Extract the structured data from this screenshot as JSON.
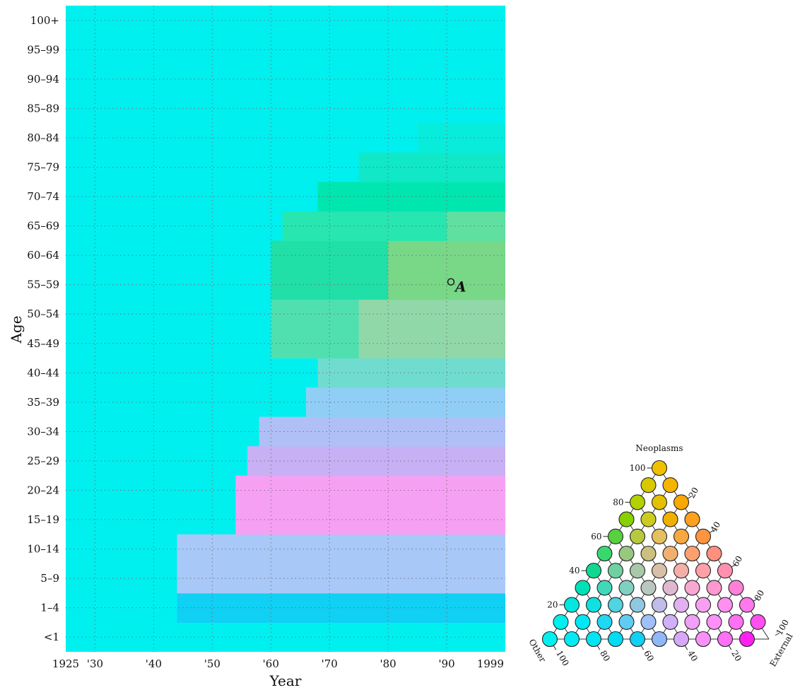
{
  "chart_data": [
    {
      "type": "heatmap",
      "title": "",
      "xlabel": "Year",
      "ylabel": "Age",
      "xlim": [
        1925,
        1999
      ],
      "x_ticks": [
        {
          "value": 1925,
          "label": "1925"
        },
        {
          "value": 1930,
          "label": "'30"
        },
        {
          "value": 1940,
          "label": "'40"
        },
        {
          "value": 1950,
          "label": "'50"
        },
        {
          "value": 1960,
          "label": "'60"
        },
        {
          "value": 1970,
          "label": "'70"
        },
        {
          "value": 1980,
          "label": "'80"
        },
        {
          "value": 1990,
          "label": "'90"
        },
        {
          "value": 1999,
          "label": "1999"
        }
      ],
      "age_groups": [
        "<1",
        "1–4",
        "5–9",
        "10–14",
        "15–19",
        "20–24",
        "25–29",
        "30–34",
        "35–39",
        "40–44",
        "45–49",
        "50–54",
        "55–59",
        "60–64",
        "65–69",
        "70–74",
        "75–79",
        "80–84",
        "85–89",
        "90–94",
        "95–99",
        "100+"
      ],
      "grid": true,
      "color_encoding": "ternary composition of cause of death shares: Other (cyan), Neoplasms (yellow), External (magenta)",
      "legend_placement": "bottom-right",
      "base_color": "#00f0f0",
      "regions": [
        {
          "x": [
            1944,
            1999
          ],
          "ages": [
            "1–4"
          ],
          "color": "#10d0f4"
        },
        {
          "x": [
            1944,
            1999
          ],
          "ages": [
            "5–9",
            "10–14"
          ],
          "color": "#a8c8f8"
        },
        {
          "x": [
            1954,
            1999
          ],
          "ages": [
            "15–19",
            "20–24"
          ],
          "color": "#f6a0f4"
        },
        {
          "x": [
            1956,
            1999
          ],
          "ages": [
            "25–29"
          ],
          "color": "#c8b0f4"
        },
        {
          "x": [
            1958,
            1999
          ],
          "ages": [
            "30–34"
          ],
          "color": "#b0c0f6"
        },
        {
          "x": [
            1966,
            1999
          ],
          "ages": [
            "35–39"
          ],
          "color": "#90cef6"
        },
        {
          "x": [
            1968,
            1999
          ],
          "ages": [
            "40–44"
          ],
          "color": "#70dcd0"
        },
        {
          "x": [
            1960,
            1999
          ],
          "ages": [
            "45–49",
            "50–54"
          ],
          "color": "#50e0b0"
        },
        {
          "x": [
            1975,
            1999
          ],
          "ages": [
            "45–49",
            "50–54"
          ],
          "color": "#90d8a8"
        },
        {
          "x": [
            1960,
            1999
          ],
          "ages": [
            "55–59",
            "60–64"
          ],
          "color": "#20e0a8"
        },
        {
          "x": [
            1980,
            1999
          ],
          "ages": [
            "55–59",
            "60–64"
          ],
          "color": "#78d888"
        },
        {
          "x": [
            1962,
            1999
          ],
          "ages": [
            "65–69"
          ],
          "color": "#28e6b0"
        },
        {
          "x": [
            1990,
            1999
          ],
          "ages": [
            "65–69"
          ],
          "color": "#60e0a0"
        },
        {
          "x": [
            1968,
            1999
          ],
          "ages": [
            "70–74"
          ],
          "color": "#00e6b0"
        },
        {
          "x": [
            1975,
            1999
          ],
          "ages": [
            "75–79"
          ],
          "color": "#10e8c8"
        },
        {
          "x": [
            1985,
            1999
          ],
          "ages": [
            "80–84"
          ],
          "color": "#08ecdc"
        }
      ],
      "annotations": [
        {
          "label": "A",
          "year": 1990,
          "age": "55–59"
        }
      ]
    },
    {
      "type": "ternary-legend",
      "axes": {
        "top": "Neoplasms",
        "left": "Other",
        "right": "External"
      },
      "ticks": [
        100,
        80,
        60,
        40,
        20
      ],
      "right_edge_ticks": [
        20,
        40,
        60,
        80,
        100
      ],
      "bottom_ticks": [
        100,
        80,
        60,
        40,
        20
      ],
      "rows": [
        [
          "#f0c000"
        ],
        [
          "#d8c800",
          "#f4b400"
        ],
        [
          "#b4d000",
          "#e4c000",
          "#f8a800"
        ],
        [
          "#88d000",
          "#cccc20",
          "#f0b000",
          "#fca020"
        ],
        [
          "#58d040",
          "#b8c840",
          "#e4c060",
          "#f8a840",
          "#ff9440"
        ],
        [
          "#38d870",
          "#98c880",
          "#ccc080",
          "#f0b070",
          "#fca070",
          "#ff9080"
        ],
        [
          "#10d890",
          "#70d0a0",
          "#a8c8a8",
          "#d8c0a8",
          "#f4b0a8",
          "#ffa0a8",
          "#ff90b0"
        ],
        [
          "#00e0b8",
          "#40d8b8",
          "#80d0c0",
          "#b8c8c0",
          "#e0b8d0",
          "#f8a8d0",
          "#ff98d0",
          "#ff80d8"
        ],
        [
          "#00e8e0",
          "#10e0e0",
          "#50d4e0",
          "#90c8e0",
          "#c0bce8",
          "#e0b0f0",
          "#f8a0f0",
          "#ff90f0",
          "#ff78ec"
        ],
        [
          "#00f0f0",
          "#00e8f4",
          "#20d8f4",
          "#60ccf4",
          "#a0c0f8",
          "#d0b0f8",
          "#f0a0f8",
          "#ff90f8",
          "#ff70f4",
          "#ff50f0"
        ],
        [
          "#00f0f0",
          "#00ecf4",
          "#00e4f4",
          "#00dcf4",
          "#10d0f4",
          "#90b8f8",
          "#d8a8f8",
          "#f890f8",
          "#ff70f4",
          "#ff20f0"
        ]
      ]
    }
  ]
}
